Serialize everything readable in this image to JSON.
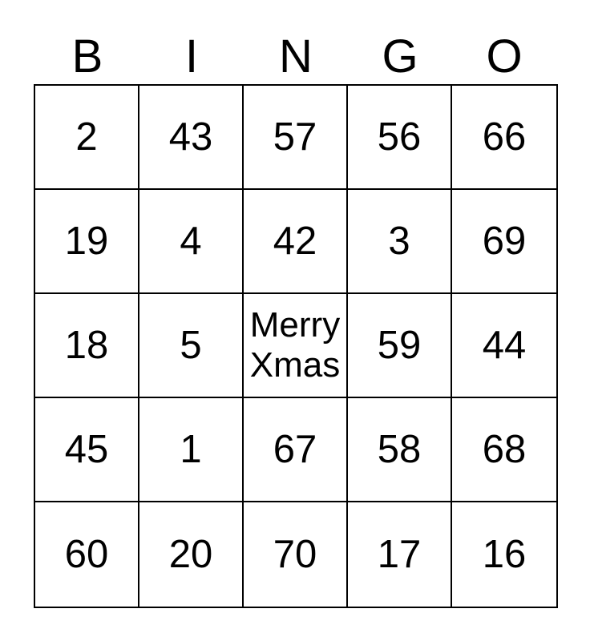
{
  "card": {
    "header": {
      "letters": [
        "B",
        "I",
        "N",
        "G",
        "O"
      ]
    },
    "grid": {
      "rows": [
        [
          "2",
          "43",
          "57",
          "56",
          "66"
        ],
        [
          "19",
          "4",
          "42",
          "3",
          "69"
        ],
        [
          "18",
          "5",
          "Merry Xmas",
          "59",
          "44"
        ],
        [
          "45",
          "1",
          "67",
          "58",
          "68"
        ],
        [
          "60",
          "20",
          "70",
          "17",
          "16"
        ]
      ],
      "free_space": {
        "row_index": 2,
        "col_index": 2,
        "label": "Merry Xmas"
      }
    }
  },
  "colors": {
    "background": "#ffffff",
    "text": "#000000",
    "border": "#000000"
  }
}
